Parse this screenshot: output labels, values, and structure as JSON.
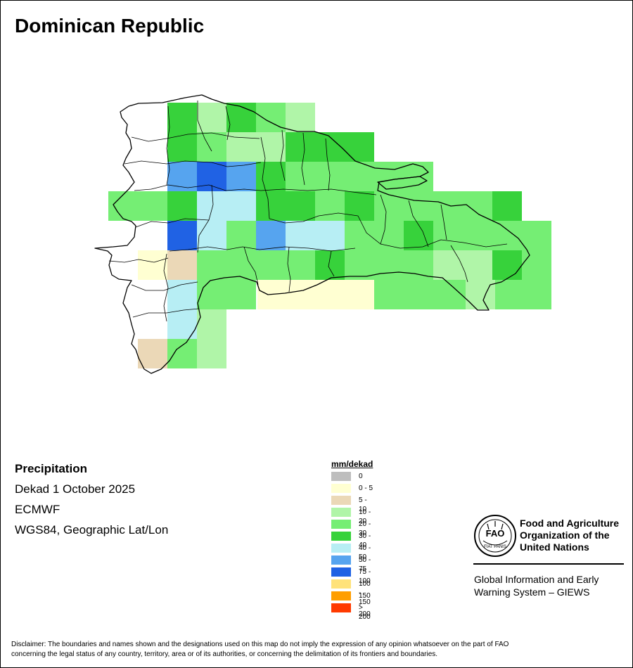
{
  "map": {
    "title": "Dominican Republic"
  },
  "info": {
    "variable": "Precipitation",
    "period": "Dekad 1 October 2025",
    "source": "ECMWF",
    "projection": "WGS84, Geographic Lat/Lon"
  },
  "legend": {
    "title": "mm/dekad",
    "items": [
      {
        "label": "0",
        "color": "#bebebe"
      },
      {
        "label": "0 - 5",
        "color": "#ffffd2"
      },
      {
        "label": "5 - 10",
        "color": "#ebd8b7"
      },
      {
        "label": "10 - 20",
        "color": "#b0f5a8"
      },
      {
        "label": "20 - 30",
        "color": "#75ee74"
      },
      {
        "label": "30 - 40",
        "color": "#37d23b"
      },
      {
        "label": "40 - 50",
        "color": "#b7eef4"
      },
      {
        "label": "50 - 75",
        "color": "#56a4ef"
      },
      {
        "label": "75 - 100",
        "color": "#2062e4"
      },
      {
        "label": "100 - 150",
        "color": "#ffe27a"
      },
      {
        "label": "150 - 200",
        "color": "#ff9e00"
      },
      {
        "label": "> 200",
        "color": "#ff3a00"
      }
    ]
  },
  "organization": {
    "logo_text": "FAO",
    "logo_motto": "FIAT PANIS",
    "name_line1": "Food and Agriculture",
    "name_line2": "Organization of the",
    "name_line3": "United Nations",
    "system_line1": "Global Information and Early",
    "system_line2": "Warning System – GIEWS"
  },
  "disclaimer_line1": "Disclaimer: The boundaries and names shown and the designations used on this map do not imply the expression of any opinion whatsoever on the part of FAO",
  "disclaimer_line2": "concerning the legal status of any country, territory, area or of its authorities, or concerning the delimitation of its frontiers and boundaries."
}
